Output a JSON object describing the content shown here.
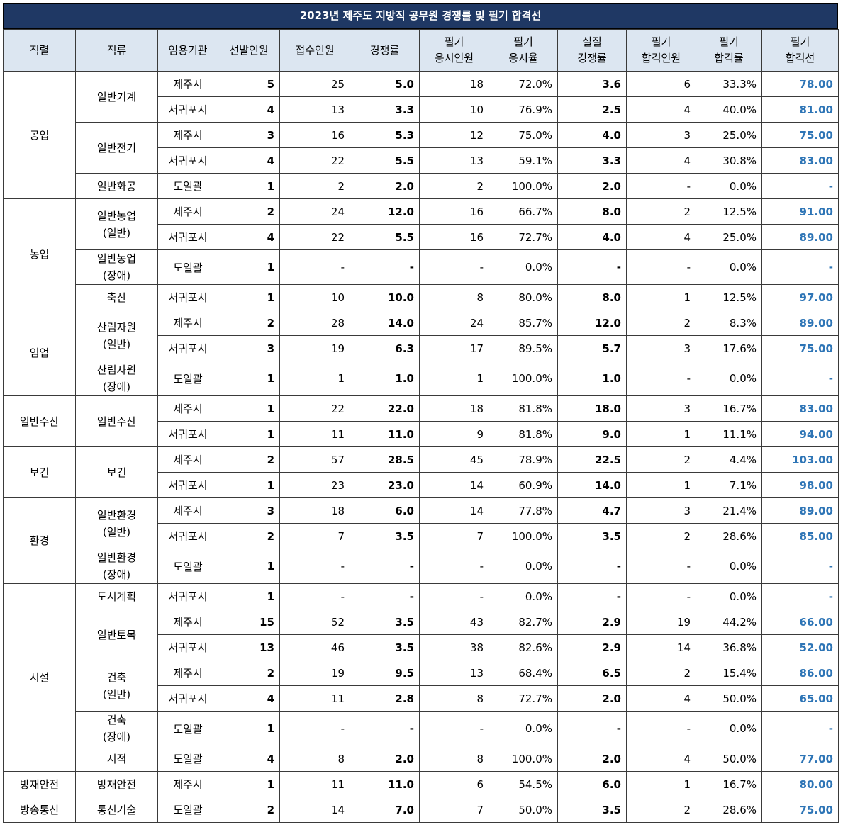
{
  "title": "2023년 제주도 지방직 공무원 경쟁률 및 필기 합격선",
  "headers": [
    "직렬",
    "직류",
    "임용기관",
    "선발인원",
    "접수인원",
    "경쟁률",
    "필기\n응시인원",
    "필기\n응시율",
    "실질\n경쟁률",
    "필기\n합격인원",
    "필기\n합격률",
    "필기\n합격선"
  ],
  "rows": [
    [
      "공업",
      "일반기계",
      "제주시",
      "5",
      "25",
      "5.0",
      "18",
      "72.0%",
      "3.6",
      "6",
      "33.3%",
      "78.00"
    ],
    [
      "",
      "",
      "서귀포시",
      "4",
      "13",
      "3.3",
      "10",
      "76.9%",
      "2.5",
      "4",
      "40.0%",
      "81.00"
    ],
    [
      "",
      "일반전기",
      "제주시",
      "3",
      "16",
      "5.3",
      "12",
      "75.0%",
      "4.0",
      "3",
      "25.0%",
      "75.00"
    ],
    [
      "",
      "",
      "서귀포시",
      "4",
      "22",
      "5.5",
      "13",
      "59.1%",
      "3.3",
      "4",
      "30.8%",
      "83.00"
    ],
    [
      "",
      "일반화공",
      "도일괄",
      "1",
      "2",
      "2.0",
      "2",
      "100.0%",
      "2.0",
      "-",
      "0.0%",
      "-"
    ],
    [
      "농업",
      "일반농업\n(일반)",
      "제주시",
      "2",
      "24",
      "12.0",
      "16",
      "66.7%",
      "8.0",
      "2",
      "12.5%",
      "91.00"
    ],
    [
      "",
      "",
      "서귀포시",
      "4",
      "22",
      "5.5",
      "16",
      "72.7%",
      "4.0",
      "4",
      "25.0%",
      "89.00"
    ],
    [
      "",
      "일반농업\n(장애)",
      "도일괄",
      "1",
      "-",
      "-",
      "-",
      "0.0%",
      "-",
      "-",
      "0.0%",
      "-"
    ],
    [
      "",
      "축산",
      "서귀포시",
      "1",
      "10",
      "10.0",
      "8",
      "80.0%",
      "8.0",
      "1",
      "12.5%",
      "97.00"
    ],
    [
      "임업",
      "산림자원\n(일반)",
      "제주시",
      "2",
      "28",
      "14.0",
      "24",
      "85.7%",
      "12.0",
      "2",
      "8.3%",
      "89.00"
    ],
    [
      "",
      "",
      "서귀포시",
      "3",
      "19",
      "6.3",
      "17",
      "89.5%",
      "5.7",
      "3",
      "17.6%",
      "75.00"
    ],
    [
      "",
      "산림자원\n(장애)",
      "도일괄",
      "1",
      "1",
      "1.0",
      "1",
      "100.0%",
      "1.0",
      "-",
      "0.0%",
      "-"
    ],
    [
      "일반수산",
      "일반수산",
      "제주시",
      "1",
      "22",
      "22.0",
      "18",
      "81.8%",
      "18.0",
      "3",
      "16.7%",
      "83.00"
    ],
    [
      "",
      "",
      "서귀포시",
      "1",
      "11",
      "11.0",
      "9",
      "81.8%",
      "9.0",
      "1",
      "11.1%",
      "94.00"
    ],
    [
      "보건",
      "보건",
      "제주시",
      "2",
      "57",
      "28.5",
      "45",
      "78.9%",
      "22.5",
      "2",
      "4.4%",
      "103.00"
    ],
    [
      "",
      "",
      "서귀포시",
      "1",
      "23",
      "23.0",
      "14",
      "60.9%",
      "14.0",
      "1",
      "7.1%",
      "98.00"
    ],
    [
      "환경",
      "일반환경\n(일반)",
      "제주시",
      "3",
      "18",
      "6.0",
      "14",
      "77.8%",
      "4.7",
      "3",
      "21.4%",
      "89.00"
    ],
    [
      "",
      "",
      "서귀포시",
      "2",
      "7",
      "3.5",
      "7",
      "100.0%",
      "3.5",
      "2",
      "28.6%",
      "85.00"
    ],
    [
      "",
      "일반환경\n(장애)",
      "도일괄",
      "1",
      "-",
      "-",
      "-",
      "0.0%",
      "-",
      "-",
      "0.0%",
      "-"
    ],
    [
      "시설",
      "도시계획",
      "서귀포시",
      "1",
      "-",
      "-",
      "-",
      "0.0%",
      "-",
      "-",
      "0.0%",
      "-"
    ],
    [
      "",
      "일반토목",
      "제주시",
      "15",
      "52",
      "3.5",
      "43",
      "82.7%",
      "2.9",
      "19",
      "44.2%",
      "66.00"
    ],
    [
      "",
      "",
      "서귀포시",
      "13",
      "46",
      "3.5",
      "38",
      "82.6%",
      "2.9",
      "14",
      "36.8%",
      "52.00"
    ],
    [
      "",
      "건축\n(일반)",
      "제주시",
      "2",
      "19",
      "9.5",
      "13",
      "68.4%",
      "6.5",
      "2",
      "15.4%",
      "86.00"
    ],
    [
      "",
      "",
      "서귀포시",
      "4",
      "11",
      "2.8",
      "8",
      "72.7%",
      "2.0",
      "4",
      "50.0%",
      "65.00"
    ],
    [
      "",
      "건축\n(장애)",
      "도일괄",
      "1",
      "-",
      "-",
      "-",
      "0.0%",
      "-",
      "-",
      "0.0%",
      "-"
    ],
    [
      "",
      "지적",
      "도일괄",
      "4",
      "8",
      "2.0",
      "8",
      "100.0%",
      "2.0",
      "4",
      "50.0%",
      "77.00"
    ],
    [
      "방재안전",
      "방재안전",
      "제주시",
      "1",
      "11",
      "11.0",
      "6",
      "54.5%",
      "6.0",
      "1",
      "16.7%",
      "80.00"
    ],
    [
      "방송통신",
      "통신기술",
      "도일괄",
      "2",
      "14",
      "7.0",
      "7",
      "50.0%",
      "3.5",
      "2",
      "28.6%",
      "75.00"
    ]
  ]
}
